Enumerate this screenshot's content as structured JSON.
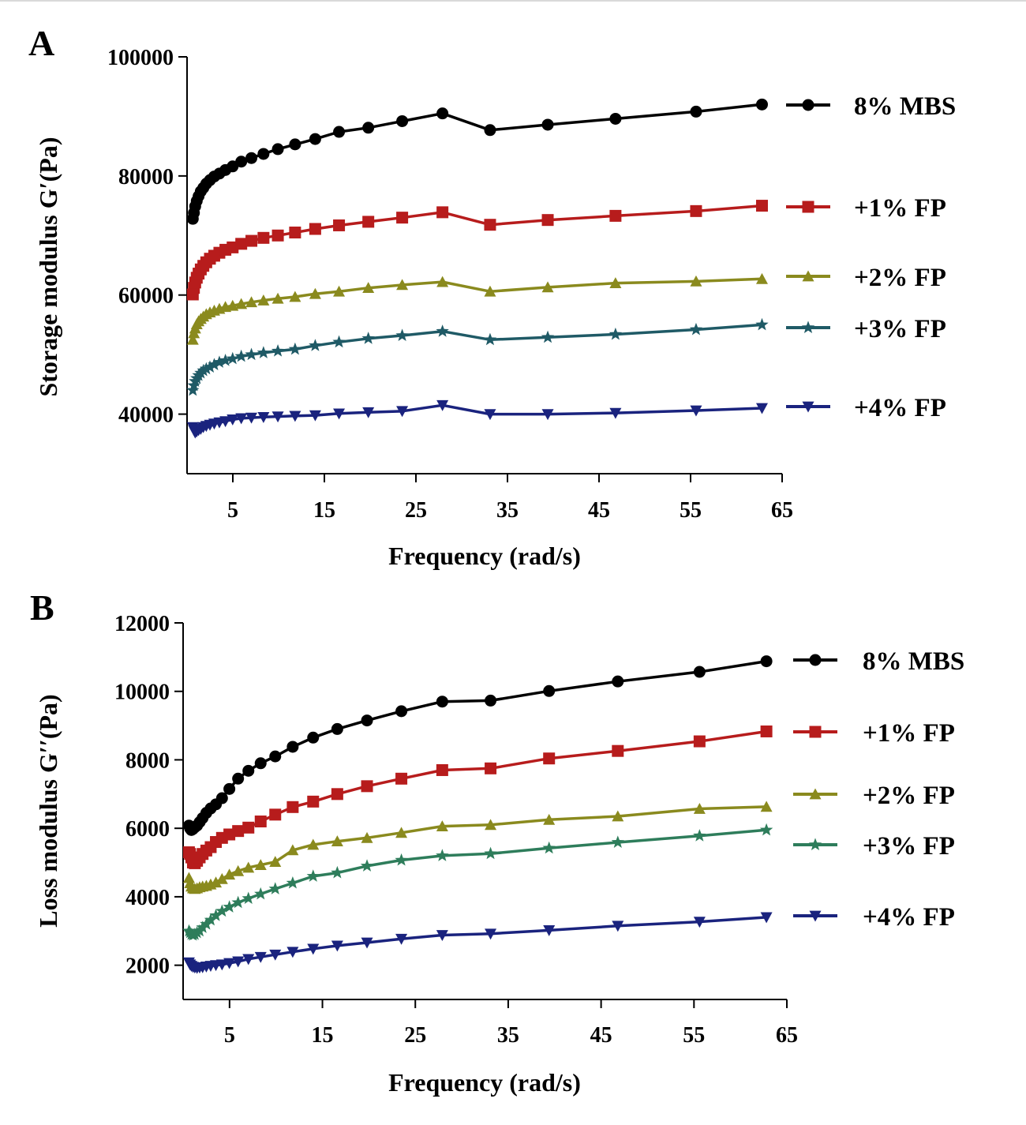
{
  "chart_data": [
    {
      "panel_label": "A",
      "type": "line",
      "xlabel": "Frequency (rad/s)",
      "ylabel": "Storage modulus G′(Pa)",
      "xlim": [
        0,
        65
      ],
      "ylim": [
        30000,
        100000
      ],
      "xticks": [
        5,
        15,
        25,
        35,
        45,
        55,
        65
      ],
      "yticks": [
        40000,
        60000,
        80000,
        100000
      ],
      "xtick_labels": [
        "5",
        "15",
        "25",
        "35",
        "45",
        "55",
        "65"
      ],
      "ytick_labels": [
        "40000",
        "60000",
        "80000",
        "100000"
      ],
      "legend_position": "right",
      "x": [
        0.63,
        0.75,
        0.89,
        1.06,
        1.26,
        1.5,
        1.78,
        2.1,
        2.5,
        2.97,
        3.53,
        4.19,
        4.98,
        5.92,
        7.03,
        8.35,
        9.92,
        11.8,
        14.0,
        16.6,
        19.8,
        23.5,
        27.9,
        33.1,
        39.4,
        46.8,
        55.6,
        62.8
      ],
      "series": [
        {
          "name": "8% MBS",
          "marker": "circle",
          "color": "#000000",
          "values": [
            72800,
            73800,
            74900,
            75800,
            76600,
            77400,
            78000,
            78700,
            79300,
            79900,
            80400,
            81000,
            81600,
            82400,
            83000,
            83700,
            84500,
            85300,
            86200,
            87400,
            88100,
            89200,
            90500,
            87700,
            88600,
            89600,
            90800,
            92000
          ]
        },
        {
          "name": "+1% FP",
          "marker": "square",
          "color": "#b71c1c",
          "values": [
            60100,
            61200,
            62100,
            62900,
            63600,
            64300,
            64900,
            65500,
            66100,
            66600,
            67100,
            67600,
            68000,
            68600,
            69100,
            69600,
            70000,
            70500,
            71100,
            71700,
            72300,
            73000,
            73900,
            71800,
            72600,
            73300,
            74100,
            75000
          ]
        },
        {
          "name": "+2% FP",
          "marker": "triangle-up",
          "color": "#8a8a1e",
          "values": [
            52500,
            53600,
            54400,
            55100,
            55600,
            56000,
            56400,
            56800,
            57100,
            57400,
            57700,
            58000,
            58200,
            58500,
            58800,
            59100,
            59400,
            59700,
            60200,
            60600,
            61200,
            61700,
            62200,
            60600,
            61300,
            62000,
            62300,
            62700
          ]
        },
        {
          "name": "+3% FP",
          "marker": "star",
          "color": "#1f5a66",
          "values": [
            44000,
            44800,
            45500,
            46000,
            46500,
            46900,
            47300,
            47600,
            47900,
            48300,
            48700,
            49000,
            49300,
            49700,
            50000,
            50300,
            50600,
            50900,
            51500,
            52100,
            52700,
            53200,
            53900,
            52500,
            52900,
            53400,
            54200,
            55000
          ]
        },
        {
          "name": "+4% FP",
          "marker": "triangle-down",
          "color": "#1a237e",
          "values": [
            37800,
            37300,
            36900,
            37100,
            37300,
            37500,
            37800,
            38000,
            38200,
            38400,
            38600,
            38800,
            39100,
            39300,
            39400,
            39500,
            39600,
            39700,
            39800,
            40100,
            40300,
            40500,
            41500,
            40000,
            40000,
            40200,
            40600,
            41000
          ]
        }
      ]
    },
    {
      "panel_label": "B",
      "type": "line",
      "xlabel": "Frequency (rad/s)",
      "ylabel": "Loss modulus G′′(Pa)",
      "xlim": [
        0,
        65
      ],
      "ylim": [
        1000,
        12000
      ],
      "xticks": [
        5,
        15,
        25,
        35,
        45,
        55,
        65
      ],
      "yticks": [
        2000,
        4000,
        6000,
        8000,
        10000,
        12000
      ],
      "xtick_labels": [
        "5",
        "15",
        "25",
        "35",
        "45",
        "55",
        "65"
      ],
      "ytick_labels": [
        "2000",
        "4000",
        "6000",
        "8000",
        "10000",
        "12000"
      ],
      "legend_position": "right",
      "x": [
        0.63,
        0.75,
        0.89,
        1.06,
        1.26,
        1.5,
        1.78,
        2.1,
        2.5,
        2.97,
        3.53,
        4.19,
        4.98,
        5.92,
        7.03,
        8.35,
        9.92,
        11.8,
        14.0,
        16.6,
        19.8,
        23.5,
        27.9,
        33.1,
        39.4,
        46.8,
        55.6,
        62.8
      ],
      "series": [
        {
          "name": "8% MBS",
          "marker": "circle",
          "color": "#000000",
          "values": [
            6080,
            6000,
            5950,
            5980,
            6030,
            6080,
            6180,
            6300,
            6450,
            6580,
            6700,
            6880,
            7150,
            7450,
            7680,
            7900,
            8100,
            8380,
            8650,
            8900,
            9150,
            9420,
            9700,
            9730,
            10010,
            10290,
            10570,
            10880
          ]
        },
        {
          "name": "+1% FP",
          "marker": "square",
          "color": "#b71c1c",
          "values": [
            5300,
            5250,
            5150,
            5000,
            4980,
            5050,
            5150,
            5250,
            5350,
            5450,
            5600,
            5720,
            5820,
            5920,
            6020,
            6200,
            6400,
            6620,
            6780,
            7000,
            7230,
            7450,
            7700,
            7750,
            8040,
            8260,
            8540,
            8830
          ]
        },
        {
          "name": "+2% FP",
          "marker": "triangle-up",
          "color": "#8a8a1e",
          "values": [
            4550,
            4400,
            4300,
            4250,
            4230,
            4250,
            4280,
            4300,
            4320,
            4360,
            4420,
            4520,
            4650,
            4750,
            4850,
            4930,
            5020,
            5360,
            5520,
            5620,
            5720,
            5870,
            6060,
            6100,
            6250,
            6350,
            6570,
            6630
          ]
        },
        {
          "name": "+3% FP",
          "marker": "star",
          "color": "#2e7d5b",
          "values": [
            3000,
            2950,
            2900,
            2880,
            2900,
            2950,
            3000,
            3100,
            3200,
            3320,
            3450,
            3580,
            3700,
            3830,
            3950,
            4080,
            4230,
            4400,
            4600,
            4700,
            4900,
            5070,
            5200,
            5260,
            5420,
            5590,
            5780,
            5950
          ]
        },
        {
          "name": "+4% FP",
          "marker": "triangle-down",
          "color": "#1a237e",
          "values": [
            2080,
            2020,
            1980,
            1950,
            1930,
            1920,
            1930,
            1940,
            1960,
            1980,
            2000,
            2020,
            2060,
            2110,
            2180,
            2240,
            2310,
            2390,
            2480,
            2570,
            2660,
            2770,
            2880,
            2920,
            3020,
            3150,
            3270,
            3400
          ]
        }
      ]
    }
  ]
}
